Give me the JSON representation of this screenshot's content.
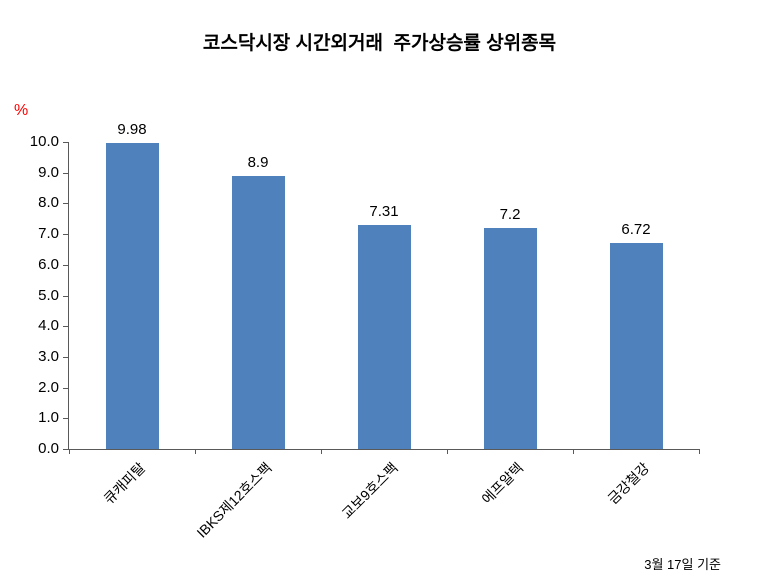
{
  "chart_data": {
    "type": "bar",
    "title": "코스닥시장 시간외거래  주가상승률 상위종목",
    "ylabel": "%",
    "xlabel": "",
    "categories": [
      "큐캐피탈",
      "IBKS제12호스팩",
      "교보9호스팩",
      "에프알텍",
      "금강철강"
    ],
    "values": [
      9.98,
      8.9,
      7.31,
      7.2,
      6.72
    ],
    "value_labels": [
      "9.98",
      "8.9",
      "7.31",
      "7.2",
      "6.72"
    ],
    "ylim": [
      0,
      10
    ],
    "ytick_step": 1,
    "ytick_decimals": 1,
    "bar_color": "#4F81BD",
    "axis_color": "#595959",
    "grid": false,
    "legend": "none"
  },
  "footnote": "3월 17일 기준"
}
